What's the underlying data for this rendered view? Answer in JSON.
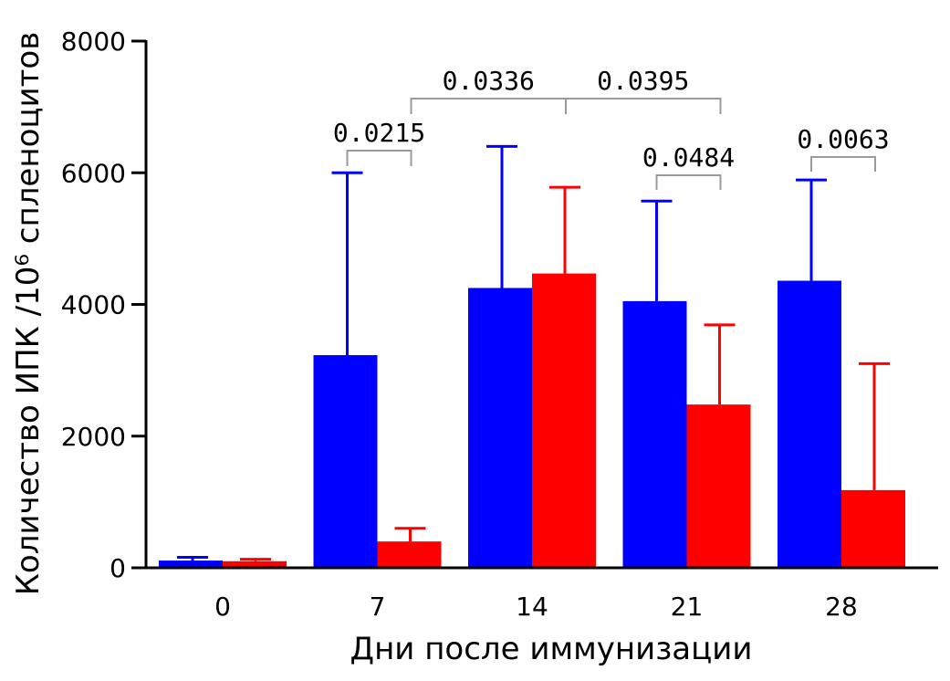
{
  "chart_data": {
    "type": "bar",
    "title": "",
    "xlabel": "Дни после иммунизации",
    "ylabel": "Количество ИПК /10⁶ спленоцитов",
    "ylim": [
      0,
      8000
    ],
    "yticks": [
      "0",
      "2000",
      "4000",
      "6000",
      "8000"
    ],
    "categories": [
      "0",
      "7",
      "14",
      "21",
      "28"
    ],
    "series": [
      {
        "color": "#0000ff",
        "values": [
          110,
          3230,
          4250,
          4050,
          4360
        ],
        "error_upper": [
          160,
          6000,
          6400,
          5570,
          5890
        ]
      },
      {
        "color": "#ff0000",
        "values": [
          100,
          400,
          4470,
          2480,
          1180
        ],
        "error_upper": [
          130,
          600,
          5780,
          3690,
          3100
        ]
      }
    ],
    "annotations": [
      {
        "label": "0.0215",
        "from": {
          "category": 1,
          "series": 0
        },
        "to": {
          "category": 1,
          "series": 1
        }
      },
      {
        "label": "0.0336",
        "from": {
          "category": 1,
          "series": 1
        },
        "to": {
          "category": 2,
          "series": 1
        }
      },
      {
        "label": "0.0395",
        "from": {
          "category": 2,
          "series": 1
        },
        "to": {
          "category": 3,
          "series": 1
        }
      },
      {
        "label": "0.0484",
        "from": {
          "category": 3,
          "series": 0
        },
        "to": {
          "category": 3,
          "series": 1
        }
      },
      {
        "label": "0.0063",
        "from": {
          "category": 4,
          "series": 0
        },
        "to": {
          "category": 4,
          "series": 1
        }
      }
    ],
    "legend": "none",
    "grid": false
  }
}
